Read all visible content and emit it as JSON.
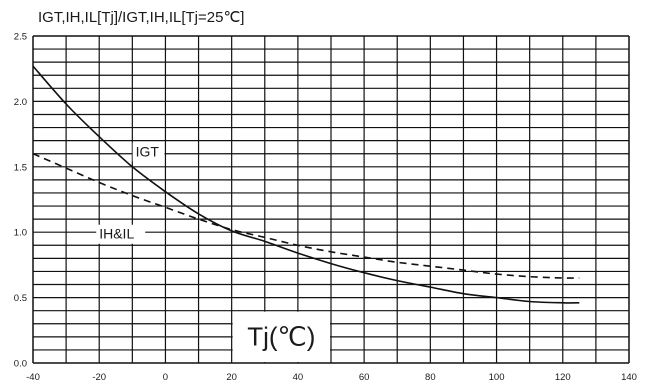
{
  "chart_data": {
    "type": "line",
    "title": "IGT,IH,IL[Tj]/IGT,IH,IL[Tj=25℃]",
    "xlabel": "Tj(℃)",
    "ylabel": "",
    "xlim": [
      -40,
      140
    ],
    "ylim": [
      0,
      2.5
    ],
    "x_ticks": [
      "-40",
      "-20",
      "0",
      "20",
      "40",
      "60",
      "80",
      "100",
      "120",
      "140"
    ],
    "y_ticks": [
      "0.0",
      "0.5",
      "1.0",
      "1.5",
      "2.0",
      "2.5"
    ],
    "grid": true,
    "series": [
      {
        "name": "IGT",
        "style": "solid",
        "x": [
          -40,
          -30,
          -20,
          -10,
          0,
          10,
          20,
          30,
          40,
          50,
          60,
          70,
          80,
          90,
          100,
          110,
          120,
          125
        ],
        "y": [
          2.27,
          1.98,
          1.73,
          1.5,
          1.31,
          1.14,
          1.01,
          0.93,
          0.84,
          0.76,
          0.69,
          0.63,
          0.58,
          0.53,
          0.5,
          0.47,
          0.46,
          0.46
        ]
      },
      {
        "name": "IH&IL",
        "style": "dashed",
        "x": [
          -40,
          -30,
          -20,
          -10,
          0,
          10,
          20,
          30,
          40,
          50,
          60,
          70,
          80,
          90,
          100,
          110,
          120,
          125
        ],
        "y": [
          1.6,
          1.49,
          1.38,
          1.28,
          1.19,
          1.1,
          1.02,
          0.96,
          0.9,
          0.85,
          0.81,
          0.77,
          0.74,
          0.71,
          0.68,
          0.66,
          0.65,
          0.65
        ]
      }
    ]
  }
}
